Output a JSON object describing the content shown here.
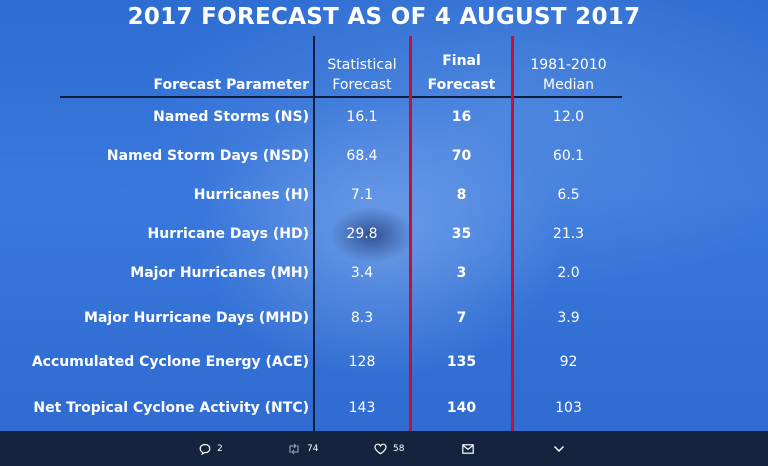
{
  "title": "2017 FORECAST AS OF 4 AUGUST 2017",
  "table": {
    "headers": {
      "parameter": "Forecast Parameter",
      "statistical": [
        "Statistical",
        "Forecast"
      ],
      "final": [
        "Final",
        "Forecast"
      ],
      "median": [
        "1981-2010",
        "Median"
      ]
    },
    "rows": [
      {
        "parameter": "Named Storms (NS)",
        "statistical": "16.1",
        "final": "16",
        "median": "12.0"
      },
      {
        "parameter": "Named Storm Days (NSD)",
        "statistical": "68.4",
        "final": "70",
        "median": "60.1"
      },
      {
        "parameter": "Hurricanes (H)",
        "statistical": "7.1",
        "final": "8",
        "median": "6.5"
      },
      {
        "parameter": "Hurricane Days (HD)",
        "statistical": "29.8",
        "final": "35",
        "median": "21.3"
      },
      {
        "parameter": "Major Hurricanes (MH)",
        "statistical": "3.4",
        "final": "3",
        "median": "2.0"
      },
      {
        "parameter": "Major Hurricane Days (MHD)",
        "statistical": "8.3",
        "final": "7",
        "median": "3.9"
      },
      {
        "parameter": "Accumulated Cyclone Energy (ACE)",
        "statistical": "128",
        "final": "135",
        "median": "92"
      },
      {
        "parameter": "Net Tropical Cyclone Activity (NTC)",
        "statistical": "143",
        "final": "140",
        "median": "103"
      }
    ]
  },
  "actions": {
    "reply": {
      "icon": "reply-icon",
      "count": "2"
    },
    "retweet": {
      "icon": "retweet-icon",
      "count": "74"
    },
    "like": {
      "icon": "heart-icon",
      "count": "58"
    },
    "message": {
      "icon": "envelope-icon"
    },
    "more": {
      "icon": "chevron-down-icon"
    }
  },
  "colors": {
    "background": "#2f6fd3",
    "action_bar": "#14243e",
    "divider_red": "#c8102e",
    "text": "#ffffff"
  }
}
